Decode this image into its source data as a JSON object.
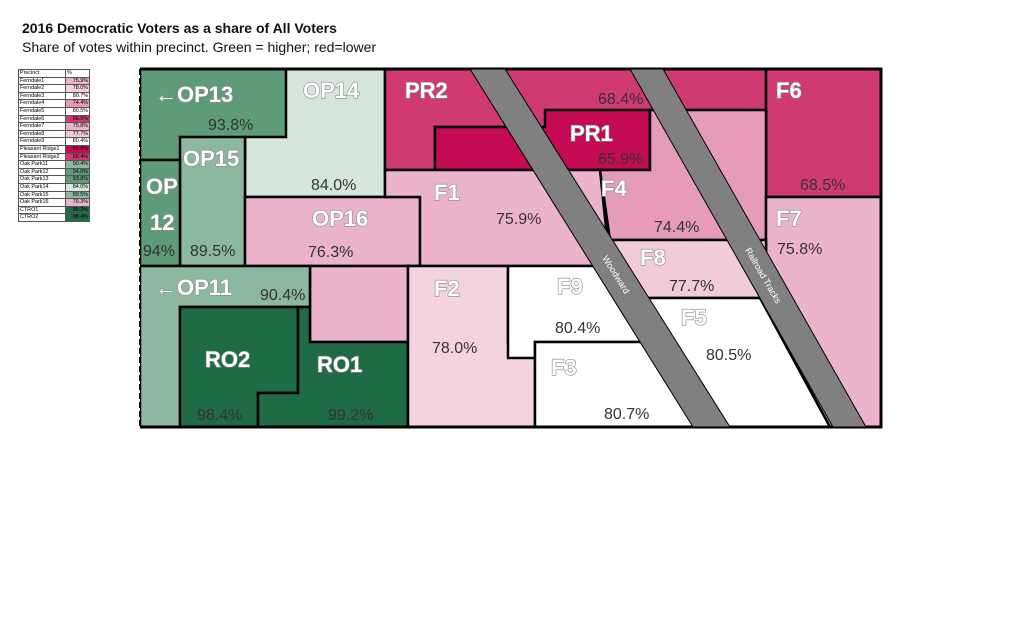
{
  "title": "2016 Democratic Voters as a share of All Voters",
  "subtitle": "Share of votes within precinct.  Green = higher; red=lower",
  "legend": {
    "header": [
      "Precinct",
      "%"
    ],
    "rows": [
      {
        "name": "Ferndale1",
        "value": "75.9%",
        "color": "#ebb3cc"
      },
      {
        "name": "Ferndale2",
        "value": "78.0%",
        "color": "#f4d3e0"
      },
      {
        "name": "Ferndale3",
        "value": "80.7%",
        "color": "#ffffff"
      },
      {
        "name": "Ferndale4",
        "value": "74.4%",
        "color": "#e69bbb"
      },
      {
        "name": "Ferndale5",
        "value": "80.5%",
        "color": "#ffffff"
      },
      {
        "name": "Ferndale6",
        "value": "68.5%",
        "color": "#cf3a73"
      },
      {
        "name": "Ferndale7",
        "value": "75.8%",
        "color": "#ebb3cc"
      },
      {
        "name": "Ferndale8",
        "value": "77.7%",
        "color": "#f2cbda"
      },
      {
        "name": "Ferndale9",
        "value": "80.4%",
        "color": "#ffffff"
      },
      {
        "name": "Pleasant Ridge1",
        "value": "65.9%",
        "color": "#c40a52"
      },
      {
        "name": "Pleasant Ridge2",
        "value": "68.4%",
        "color": "#cf3a73"
      },
      {
        "name": "Oak Park11",
        "value": "90.4%",
        "color": "#8cb89f"
      },
      {
        "name": "Oak Park12",
        "value": "94.0%",
        "color": "#5e9b78"
      },
      {
        "name": "Oak Park13",
        "value": "93.8%",
        "color": "#5e9b78"
      },
      {
        "name": "Oak Park14",
        "value": "84.0%",
        "color": "#d6e6dc"
      },
      {
        "name": "Oak Park15",
        "value": "89.5%",
        "color": "#8cb89f"
      },
      {
        "name": "Oak Park16",
        "value": "76.3%",
        "color": "#ebb3cc"
      },
      {
        "name": "CTRO1",
        "value": "99.2%",
        "color": "#1e6b45"
      },
      {
        "name": "CTRO2",
        "value": "98.4%",
        "color": "#1e6b45"
      }
    ]
  },
  "map": {
    "precincts": [
      {
        "id": "OP13",
        "label": "←OP13",
        "value": "93.8%",
        "color": "#5e9b78"
      },
      {
        "id": "OP14",
        "label": "OP14",
        "value": "84.0%",
        "color": "#d6e6dc"
      },
      {
        "id": "OP15",
        "label": "OP15",
        "value": "89.5%",
        "color": "#8cb89f"
      },
      {
        "id": "OP12",
        "label_lines": [
          "OP",
          "12"
        ],
        "value": "94%",
        "color": "#5e9b78"
      },
      {
        "id": "OP16",
        "label": "OP16",
        "value": "76.3%",
        "color": "#ebb3cc"
      },
      {
        "id": "OP11",
        "label": "←OP11",
        "value": "90.4%",
        "color": "#8cb89f"
      },
      {
        "id": "RO2",
        "label": "RO2",
        "value": "98.4%",
        "color": "#1e6b45"
      },
      {
        "id": "RO1",
        "label": "RO1",
        "value": "99.2%",
        "color": "#1e6b45"
      },
      {
        "id": "PR2",
        "label": "PR2",
        "value": "68.4%",
        "color": "#cf3a73"
      },
      {
        "id": "PR1",
        "label": "PR1",
        "value": "65.9%",
        "color": "#c40a52"
      },
      {
        "id": "F1",
        "label": "F1",
        "value": "75.9%",
        "color": "#ebb3cc"
      },
      {
        "id": "F2",
        "label": "F2",
        "value": "78.0%",
        "color": "#f4d3e0"
      },
      {
        "id": "F3",
        "label": "F3",
        "value": "80.7%",
        "color": "#ffffff"
      },
      {
        "id": "F4",
        "label": "F4",
        "value": "74.4%",
        "color": "#e69bbb"
      },
      {
        "id": "F5",
        "label": "F5",
        "value": "80.5%",
        "color": "#ffffff"
      },
      {
        "id": "F6",
        "label": "F6",
        "value": "68.5%",
        "color": "#cf3a73"
      },
      {
        "id": "F7",
        "label": "F7",
        "value": "75.8%",
        "color": "#ebb3cc"
      },
      {
        "id": "F8",
        "label": "F8",
        "value": "77.7%",
        "color": "#f2cbda"
      },
      {
        "id": "F9",
        "label": "F9",
        "value": "80.4%",
        "color": "#ffffff"
      }
    ],
    "roads": {
      "woodward": "Woodward",
      "railroad": "Railroad Tracks"
    },
    "road_color": "#808080"
  }
}
